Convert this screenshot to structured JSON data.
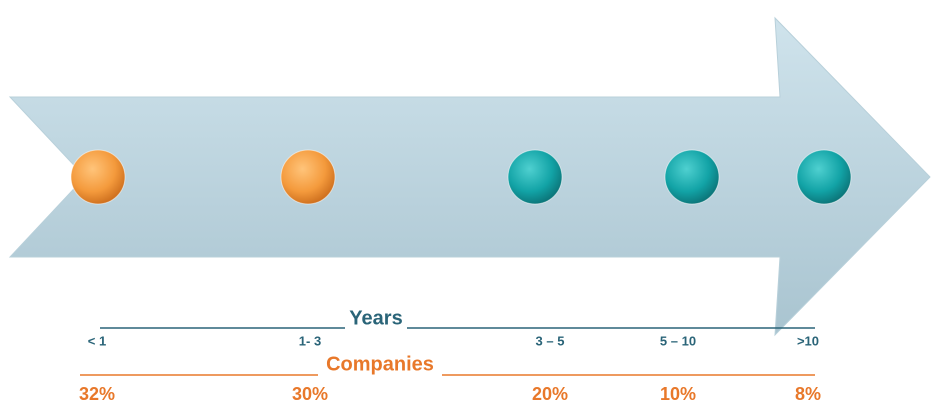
{
  "years_label": "Years",
  "companies_label": "Companies",
  "items": [
    {
      "years": "< 1",
      "share": "32%",
      "color": "orange"
    },
    {
      "years": "1- 3",
      "share": "30%",
      "color": "orange"
    },
    {
      "years": "3 – 5",
      "share": "20%",
      "color": "teal"
    },
    {
      "years": "5 – 10",
      "share": "10%",
      "color": "teal"
    },
    {
      "years": ">10",
      "share": "8%",
      "color": "teal"
    }
  ]
}
